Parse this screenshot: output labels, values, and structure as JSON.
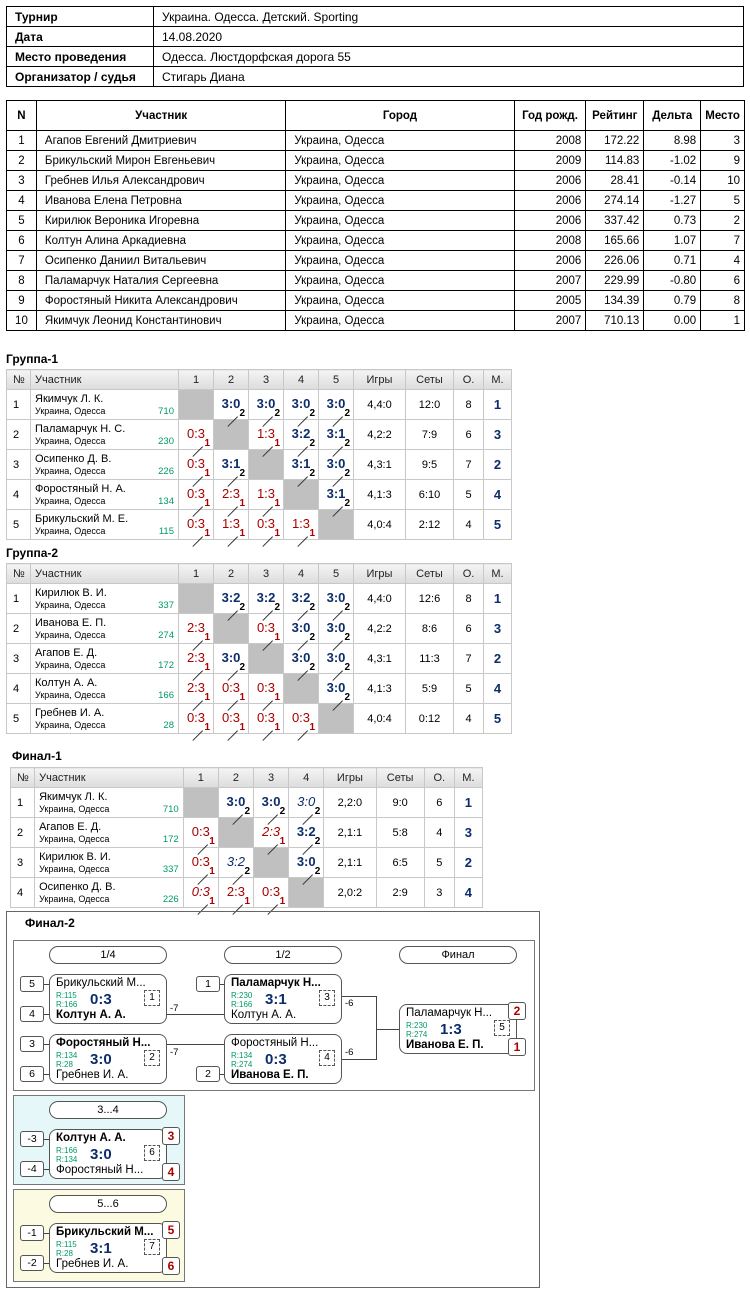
{
  "info": {
    "rows": [
      {
        "k": "Турнир",
        "v": "Украина. Одесса. Детский. Sporting"
      },
      {
        "k": "Дата",
        "v": "14.08.2020"
      },
      {
        "k": "Место проведения",
        "v": "Одесса. Люстдорфская дорога 55"
      },
      {
        "k": "Организатор / судья",
        "v": "Стигарь Диана"
      }
    ]
  },
  "participants": {
    "headers": [
      "N",
      "Участник",
      "Город",
      "Год рожд.",
      "Рейтинг",
      "Дельта",
      "Место"
    ],
    "rows": [
      [
        "1",
        "Агапов Евгений Дмитриевич",
        "Украина, Одесса",
        "2008",
        "172.22",
        "8.98",
        "3"
      ],
      [
        "2",
        "Брикульский Мирон Евгеньевич",
        "Украина, Одесса",
        "2009",
        "114.83",
        "-1.02",
        "9"
      ],
      [
        "3",
        "Гребнев Илья Александрович",
        "Украина, Одесса",
        "2006",
        "28.41",
        "-0.14",
        "10"
      ],
      [
        "4",
        "Иванова Елена Петровна",
        "Украина, Одесса",
        "2006",
        "274.14",
        "-1.27",
        "5"
      ],
      [
        "5",
        "Кирилюк Вероника Игоревна",
        "Украина, Одесса",
        "2006",
        "337.42",
        "0.73",
        "2"
      ],
      [
        "6",
        "Колтун Алина Аркадиевна",
        "Украина, Одесса",
        "2008",
        "165.66",
        "1.07",
        "7"
      ],
      [
        "7",
        "Осипенко Даниил Витальевич",
        "Украина, Одесса",
        "2006",
        "226.06",
        "0.71",
        "4"
      ],
      [
        "8",
        "Паламарчук Наталия Сергеевна",
        "Украина, Одесса",
        "2007",
        "229.99",
        "-0.80",
        "6"
      ],
      [
        "9",
        "Форостяный Никита Александрович",
        "Украина, Одесса",
        "2005",
        "134.39",
        "0.79",
        "8"
      ],
      [
        "10",
        "Якимчук Леонид Константинович",
        "Украина, Одесса",
        "2007",
        "710.13",
        "0.00",
        "1"
      ]
    ]
  },
  "groups": [
    {
      "title": "Группа-1",
      "headers": [
        "№",
        "Участник",
        "1",
        "2",
        "3",
        "4",
        "5",
        "Игры",
        "Сеты",
        "О.",
        "М."
      ],
      "rows": [
        {
          "n": "1",
          "name": "Якимчук Л. К.",
          "city": "Украина, Одесса",
          "rating": "710",
          "cells": [
            "X",
            "3:0|2|w",
            "3:0|2|w",
            "3:0|2|w",
            "3:0|2|w"
          ],
          "games": "4,4:0",
          "sets": "12:0",
          "pts": "8",
          "place": "1"
        },
        {
          "n": "2",
          "name": "Паламарчук Н. С.",
          "city": "Украина, Одесса",
          "rating": "230",
          "cells": [
            "0:3|1|l",
            "X",
            "1:3|1|l",
            "3:2|2|w",
            "3:1|2|w"
          ],
          "games": "4,2:2",
          "sets": "7:9",
          "pts": "6",
          "place": "3"
        },
        {
          "n": "3",
          "name": "Осипенко Д. В.",
          "city": "Украина, Одесса",
          "rating": "226",
          "cells": [
            "0:3|1|l",
            "3:1|2|w",
            "X",
            "3:1|2|w",
            "3:0|2|w"
          ],
          "games": "4,3:1",
          "sets": "9:5",
          "pts": "7",
          "place": "2"
        },
        {
          "n": "4",
          "name": "Форостяный Н. А.",
          "city": "Украина, Одесса",
          "rating": "134",
          "cells": [
            "0:3|1|l",
            "2:3|1|l",
            "1:3|1|l",
            "X",
            "3:1|2|w"
          ],
          "games": "4,1:3",
          "sets": "6:10",
          "pts": "5",
          "place": "4"
        },
        {
          "n": "5",
          "name": "Брикульский М. Е.",
          "city": "Украина, Одесса",
          "rating": "115",
          "cells": [
            "0:3|1|l",
            "1:3|1|l",
            "0:3|1|l",
            "1:3|1|l",
            "X"
          ],
          "games": "4,0:4",
          "sets": "2:12",
          "pts": "4",
          "place": "5"
        }
      ]
    },
    {
      "title": "Группа-2",
      "headers": [
        "№",
        "Участник",
        "1",
        "2",
        "3",
        "4",
        "5",
        "Игры",
        "Сеты",
        "О.",
        "М."
      ],
      "rows": [
        {
          "n": "1",
          "name": "Кирилюк В. И.",
          "city": "Украина, Одесса",
          "rating": "337",
          "cells": [
            "X",
            "3:2|2|w",
            "3:2|2|w",
            "3:2|2|w",
            "3:0|2|w"
          ],
          "games": "4,4:0",
          "sets": "12:6",
          "pts": "8",
          "place": "1"
        },
        {
          "n": "2",
          "name": "Иванова Е. П.",
          "city": "Украина, Одесса",
          "rating": "274",
          "cells": [
            "2:3|1|l",
            "X",
            "0:3|1|l",
            "3:0|2|w",
            "3:0|2|w"
          ],
          "games": "4,2:2",
          "sets": "8:6",
          "pts": "6",
          "place": "3"
        },
        {
          "n": "3",
          "name": "Агапов Е. Д.",
          "city": "Украина, Одесса",
          "rating": "172",
          "cells": [
            "2:3|1|l",
            "3:0|2|w",
            "X",
            "3:0|2|w",
            "3:0|2|w"
          ],
          "games": "4,3:1",
          "sets": "11:3",
          "pts": "7",
          "place": "2"
        },
        {
          "n": "4",
          "name": "Колтун А. А.",
          "city": "Украина, Одесса",
          "rating": "166",
          "cells": [
            "2:3|1|l",
            "0:3|1|l",
            "0:3|1|l",
            "X",
            "3:0|2|w"
          ],
          "games": "4,1:3",
          "sets": "5:9",
          "pts": "5",
          "place": "4"
        },
        {
          "n": "5",
          "name": "Гребнев И. А.",
          "city": "Украина, Одесса",
          "rating": "28",
          "cells": [
            "0:3|1|l",
            "0:3|1|l",
            "0:3|1|l",
            "0:3|1|l",
            "X"
          ],
          "games": "4,0:4",
          "sets": "0:12",
          "pts": "4",
          "place": "5"
        }
      ]
    },
    {
      "title": "Финал-1",
      "headers": [
        "№",
        "Участник",
        "1",
        "2",
        "3",
        "4",
        "Игры",
        "Сеты",
        "О.",
        "М."
      ],
      "rows": [
        {
          "n": "1",
          "name": "Якимчук Л. К.",
          "city": "Украина, Одесса",
          "rating": "710",
          "cells": [
            "X",
            "3:0|2|w",
            "3:0|2|w",
            "3:0|2|wi"
          ],
          "games": "2,2:0",
          "sets": "9:0",
          "pts": "6",
          "place": "1"
        },
        {
          "n": "2",
          "name": "Агапов Е. Д.",
          "city": "Украина, Одесса",
          "rating": "172",
          "cells": [
            "0:3|1|l",
            "X",
            "2:3|1|li",
            "3:2|2|w"
          ],
          "games": "2,1:1",
          "sets": "5:8",
          "pts": "4",
          "place": "3"
        },
        {
          "n": "3",
          "name": "Кирилюк В. И.",
          "city": "Украина, Одесса",
          "rating": "337",
          "cells": [
            "0:3|1|l",
            "3:2|2|wi",
            "X",
            "3:0|2|w"
          ],
          "games": "2,1:1",
          "sets": "6:5",
          "pts": "5",
          "place": "2"
        },
        {
          "n": "4",
          "name": "Осипенко Д. В.",
          "city": "Украина, Одесса",
          "rating": "226",
          "cells": [
            "0:3|1|li",
            "2:3|1|l",
            "0:3|1|l",
            "X"
          ],
          "games": "2,0:2",
          "sets": "2:9",
          "pts": "3",
          "place": "4"
        }
      ]
    }
  ],
  "final2": {
    "title": "Финал-2",
    "rounds": [
      "1/4",
      "1/2",
      "Финал"
    ],
    "m1": {
      "seed1": "5",
      "seed2": "4",
      "p1": "Брикульский М...",
      "p2": "Колтун А. А.",
      "r1": "R:115",
      "r2": "R:166",
      "score": "0:3",
      "num": "1",
      "loser": "-7"
    },
    "m2": {
      "seed1": "3",
      "seed2": "6",
      "p1": "Форостяный Н...",
      "p2": "Гребнев И. А.",
      "r1": "R:134",
      "r2": "R:28",
      "score": "3:0",
      "num": "2",
      "loser": "-7"
    },
    "m3": {
      "seed1": "1",
      "p1": "Паламарчук Н...",
      "p2": "Колтун А. А.",
      "r1": "R:230",
      "r2": "R:166",
      "score": "3:1",
      "num": "3",
      "loser": "-6"
    },
    "m4": {
      "seed2": "2",
      "p1": "Форостяный Н...",
      "p2": "Иванова Е. П.",
      "r1": "R:134",
      "r2": "R:274",
      "score": "0:3",
      "num": "4",
      "loser": "-6"
    },
    "m5": {
      "p1": "Паламарчук Н...",
      "p2": "Иванова Е. П.",
      "r1": "R:230",
      "r2": "R:274",
      "score": "1:3",
      "num": "5",
      "place1": "2",
      "place2": "1"
    },
    "b34": {
      "label": "3...4",
      "seed1": "-3",
      "seed2": "-4",
      "p1": "Колтун А. А.",
      "p2": "Форостяный Н...",
      "r1": "R:166",
      "r2": "R:134",
      "score": "3:0",
      "num": "6",
      "place1": "3",
      "place2": "4",
      "color": "#e6f7fa"
    },
    "b56": {
      "label": "5...6",
      "seed1": "-1",
      "seed2": "-2",
      "p1": "Брикульский М...",
      "p2": "Гребнев И. А.",
      "r1": "R:115",
      "r2": "R:28",
      "score": "3:1",
      "num": "7",
      "place1": "5",
      "place2": "6",
      "color": "#fcfbe2"
    }
  }
}
